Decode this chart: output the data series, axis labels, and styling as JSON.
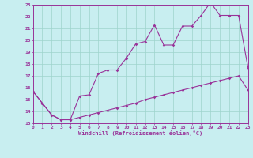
{
  "xlabel": "Windchill (Refroidissement éolien,°C)",
  "bg_color": "#c8eef0",
  "grid_color": "#9dd4cc",
  "line_color": "#993399",
  "xlim": [
    0,
    23
  ],
  "ylim": [
    13,
    23
  ],
  "xtick_labels": [
    "0",
    "1",
    "2",
    "3",
    "4",
    "5",
    "6",
    "7",
    "8",
    "9",
    "10",
    "11",
    "12",
    "13",
    "14",
    "15",
    "16",
    "17",
    "18",
    "19",
    "20",
    "21",
    "22",
    "23"
  ],
  "ytick_labels": [
    "13",
    "14",
    "15",
    "16",
    "17",
    "18",
    "19",
    "20",
    "21",
    "22",
    "23"
  ],
  "line1_x": [
    0,
    1,
    2,
    3,
    4,
    5,
    6,
    7,
    8,
    9,
    10,
    11,
    12,
    13,
    14,
    15,
    16,
    17,
    18,
    19,
    20,
    21,
    22,
    23
  ],
  "line1_y": [
    15.7,
    14.7,
    13.7,
    13.3,
    13.3,
    15.3,
    15.4,
    17.2,
    17.5,
    17.5,
    18.5,
    19.7,
    19.9,
    21.3,
    19.6,
    19.6,
    21.2,
    21.2,
    22.1,
    23.2,
    22.1,
    22.1,
    22.1,
    17.7
  ],
  "line2_x": [
    0,
    1,
    2,
    3,
    4,
    5,
    6,
    7,
    8,
    9,
    10,
    11,
    12,
    13,
    14,
    15,
    16,
    17,
    18,
    19,
    20,
    21,
    22,
    23
  ],
  "line2_y": [
    15.7,
    14.7,
    13.7,
    13.3,
    13.3,
    13.5,
    13.7,
    13.9,
    14.1,
    14.3,
    14.5,
    14.7,
    15.0,
    15.2,
    15.4,
    15.6,
    15.8,
    16.0,
    16.2,
    16.4,
    16.6,
    16.8,
    17.0,
    15.8
  ]
}
